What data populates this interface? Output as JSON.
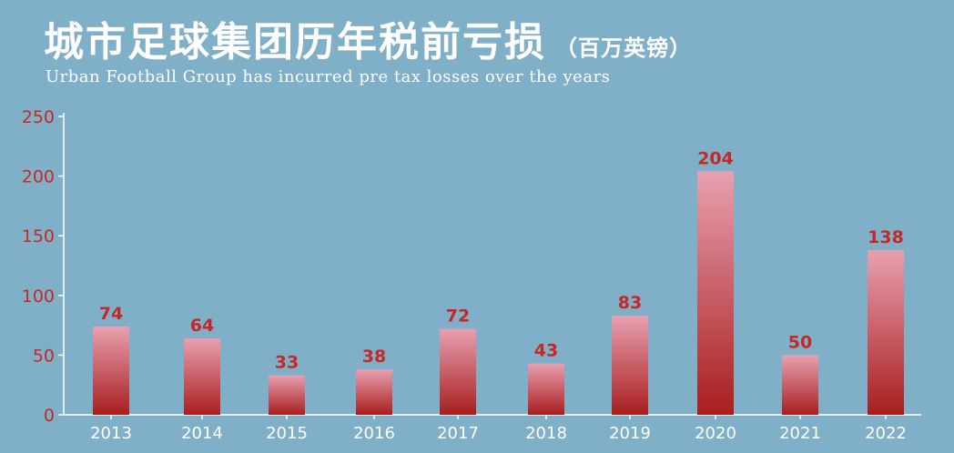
{
  "title": "城市足球集团历年税前亏损",
  "title_unit": "（百万英镑）",
  "subtitle": "Urban Football Group has incurred pre tax losses over the years",
  "colors": {
    "background": "#7fb0c8",
    "axis": "#ffffff",
    "y_tick_label": "#c62828",
    "x_tick_label": "#ffffff",
    "value_label": "#c62828",
    "bar_top": "#e8a0b0",
    "bar_bottom": "#a81e1e"
  },
  "chart_data": {
    "type": "bar",
    "title": "城市足球集团历年税前亏损（百万英镑）",
    "subtitle": "Urban Football Group has incurred pre tax losses over the years",
    "categories": [
      "2013",
      "2014",
      "2015",
      "2016",
      "2017",
      "2018",
      "2019",
      "2020",
      "2021",
      "2022"
    ],
    "values": [
      74,
      64,
      33,
      38,
      72,
      43,
      83,
      204,
      50,
      138
    ],
    "labels": [
      "74",
      "64",
      "33",
      "38",
      "72",
      "43",
      "83",
      "204",
      "50",
      "138"
    ],
    "ylim": [
      0,
      250
    ],
    "yticks": [
      0,
      50,
      100,
      150,
      200,
      250
    ],
    "grid": false,
    "legend": "none"
  }
}
